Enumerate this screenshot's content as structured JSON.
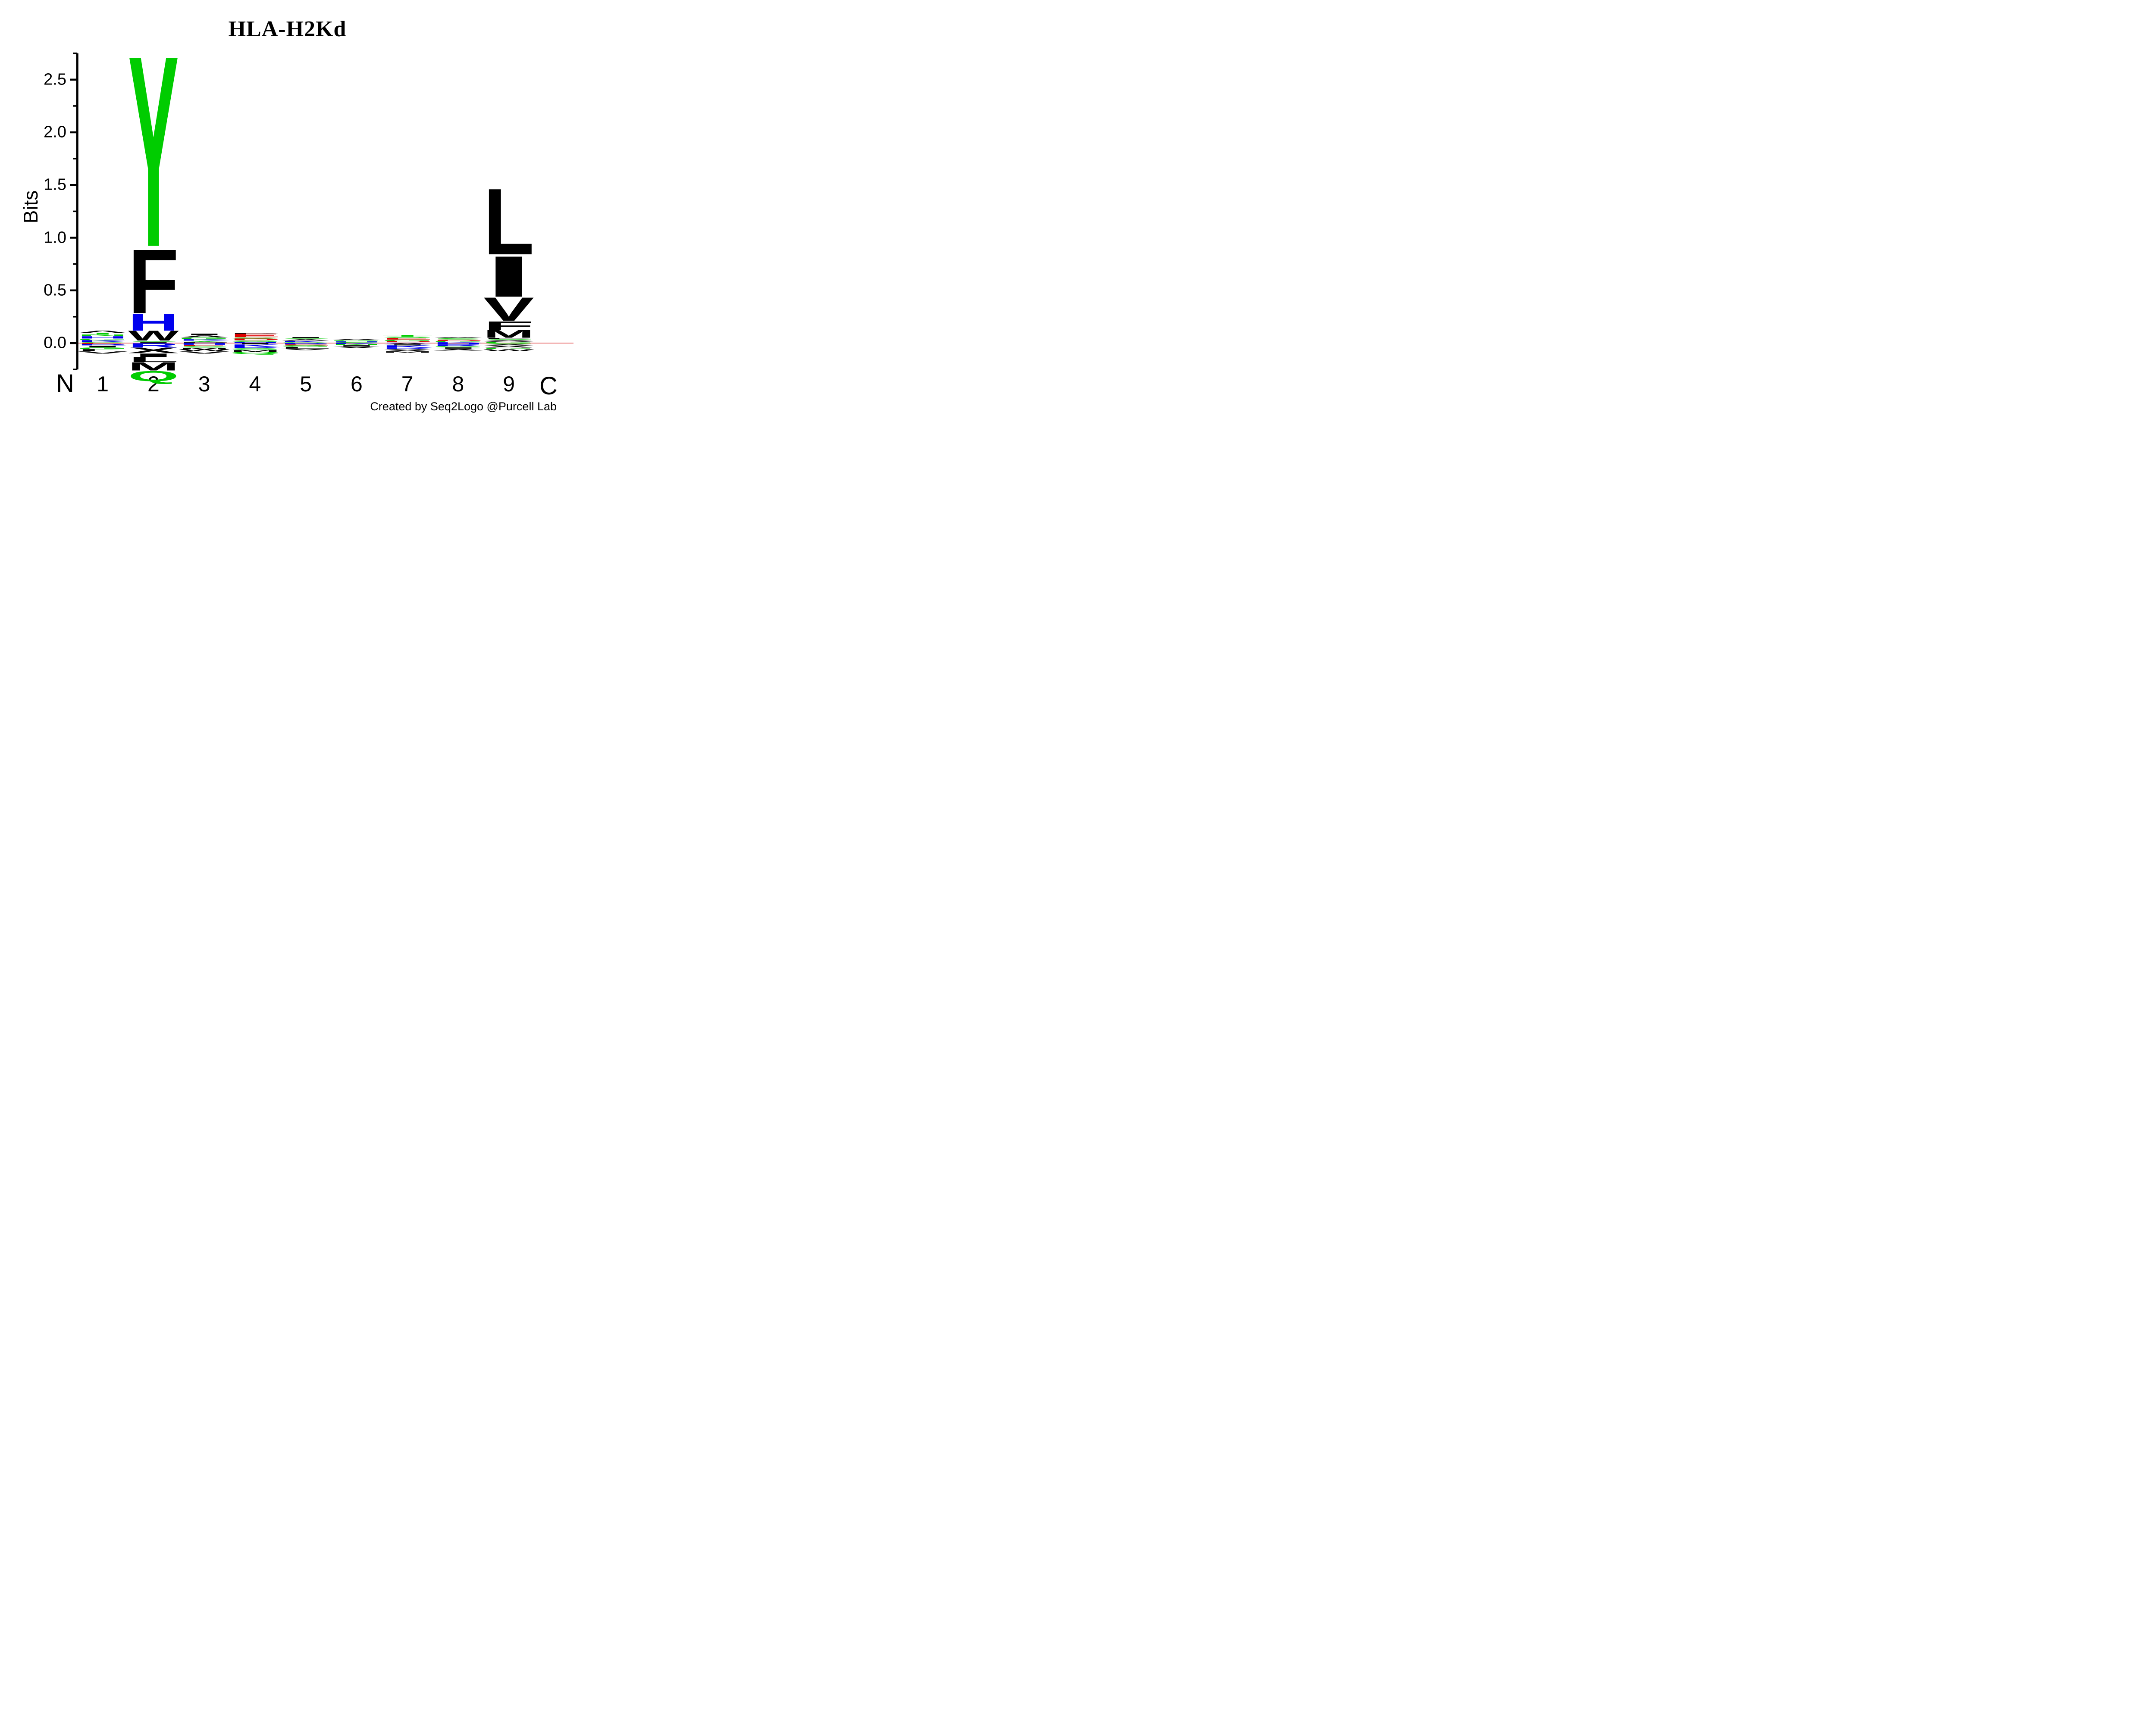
{
  "title": "HLA-H2Kd",
  "footer": "Created by Seq2Logo @Purcell Lab",
  "colors": {
    "black": "#000000",
    "green": "#00CC00",
    "blue": "#0000EE",
    "red": "#DD0000",
    "zero_line": "#E87070",
    "axis": "#000000"
  },
  "y_axis": {
    "label": "Bits",
    "major_ticks": [
      {
        "label": "0.0",
        "value": 0.0
      },
      {
        "label": "0.5",
        "value": 0.5
      },
      {
        "label": "1.0",
        "value": 1.0
      },
      {
        "label": "1.5",
        "value": 1.5
      },
      {
        "label": "2.0",
        "value": 2.0
      },
      {
        "label": "2.5",
        "value": 2.5
      }
    ],
    "minor_ticks": [
      -0.25,
      0.25,
      0.75,
      1.25,
      1.75,
      2.25,
      2.75
    ],
    "axis_max": 2.75,
    "axis_min": -0.25
  },
  "x_axis": {
    "n_terminus_label": "N",
    "c_terminus_label": "C",
    "position_labels": [
      "1",
      "2",
      "3",
      "4",
      "5",
      "6",
      "7",
      "8",
      "9"
    ]
  },
  "chart_data": {
    "type": "sequence_logo",
    "tool": "Seq2Logo",
    "units": "bits",
    "ylim": [
      -0.25,
      2.75
    ],
    "color_scheme": {
      "black_residues": "hydrophobic (A V L I P W F M X)",
      "green_residues": "polar (G S T Y C Q N)",
      "blue_residues": "basic (K R H)",
      "red_residues": "acidic (D E)"
    },
    "positions": [
      {
        "pos": 1,
        "above": [
          {
            "aa": "S",
            "color": "green",
            "bits": 0.01
          },
          {
            "aa": "K",
            "color": "blue",
            "bits": 0.018
          },
          {
            "aa": "G",
            "color": "green",
            "bits": 0.014
          },
          {
            "aa": "H",
            "color": "blue",
            "bits": 0.022
          },
          {
            "aa": "N",
            "color": "green",
            "bits": 0.016
          },
          {
            "aa": "T",
            "color": "green",
            "bits": 0.018
          },
          {
            "aa": "A",
            "color": "black",
            "bits": 0.022
          }
        ],
        "below": [
          {
            "aa": "E",
            "color": "red",
            "bits": 0.01
          },
          {
            "aa": "R",
            "color": "blue",
            "bits": 0.014
          },
          {
            "aa": "I",
            "color": "black",
            "bits": 0.016
          },
          {
            "aa": "G",
            "color": "green",
            "bits": 0.018
          },
          {
            "aa": "L",
            "color": "black",
            "bits": 0.02
          },
          {
            "aa": "V",
            "color": "black",
            "bits": 0.022
          }
        ]
      },
      {
        "pos": 2,
        "above": [
          {
            "aa": "I",
            "color": "black",
            "bits": 0.01
          },
          {
            "aa": "S",
            "color": "green",
            "bits": 0.012
          },
          {
            "aa": "W",
            "color": "black",
            "bits": 0.095
          },
          {
            "aa": "H",
            "color": "blue",
            "bits": 0.165
          },
          {
            "aa": "F",
            "color": "black",
            "bits": 0.63
          },
          {
            "aa": "Y",
            "color": "green",
            "bits": 1.88
          }
        ],
        "below": [
          {
            "aa": "R",
            "color": "blue",
            "bits": 0.042
          },
          {
            "aa": "X",
            "color": "black",
            "bits": 0.055
          },
          {
            "aa": "I",
            "color": "black",
            "bits": 0.035
          },
          {
            "aa": "L",
            "color": "black",
            "bits": 0.05
          },
          {
            "aa": "M",
            "color": "black",
            "bits": 0.08
          },
          {
            "aa": "Q",
            "color": "green",
            "bits": 0.1
          }
        ]
      },
      {
        "pos": 3,
        "above": [
          {
            "aa": "P",
            "color": "black",
            "bits": 0.01
          },
          {
            "aa": "Y",
            "color": "green",
            "bits": 0.012
          },
          {
            "aa": "K",
            "color": "blue",
            "bits": 0.014
          },
          {
            "aa": "G",
            "color": "green",
            "bits": 0.018
          },
          {
            "aa": "A",
            "color": "black",
            "bits": 0.02
          },
          {
            "aa": "I",
            "color": "black",
            "bits": 0.014
          }
        ],
        "below": [
          {
            "aa": "H",
            "color": "blue",
            "bits": 0.016
          },
          {
            "aa": "E",
            "color": "red",
            "bits": 0.01
          },
          {
            "aa": "S",
            "color": "green",
            "bits": 0.018
          },
          {
            "aa": "M",
            "color": "black",
            "bits": 0.014
          },
          {
            "aa": "W",
            "color": "black",
            "bits": 0.018
          },
          {
            "aa": "V",
            "color": "black",
            "bits": 0.022
          }
        ]
      },
      {
        "pos": 4,
        "above": [
          {
            "aa": "H",
            "color": "blue",
            "bits": 0.014
          },
          {
            "aa": "G",
            "color": "green",
            "bits": 0.012
          },
          {
            "aa": "D",
            "color": "red",
            "bits": 0.018
          },
          {
            "aa": "S",
            "color": "green",
            "bits": 0.01
          },
          {
            "aa": "E",
            "color": "red",
            "bits": 0.034
          },
          {
            "aa": "P",
            "color": "black",
            "bits": 0.01
          }
        ],
        "below": [
          {
            "aa": "I",
            "color": "black",
            "bits": 0.012
          },
          {
            "aa": "K",
            "color": "blue",
            "bits": 0.026
          },
          {
            "aa": "R",
            "color": "blue",
            "bits": 0.012
          },
          {
            "aa": "G",
            "color": "green",
            "bits": 0.014
          },
          {
            "aa": "M",
            "color": "black",
            "bits": 0.018
          },
          {
            "aa": "Q",
            "color": "green",
            "bits": 0.022
          }
        ]
      },
      {
        "pos": 5,
        "above": [
          {
            "aa": "G",
            "color": "green",
            "bits": 0.01
          },
          {
            "aa": "K",
            "color": "blue",
            "bits": 0.012
          },
          {
            "aa": "A",
            "color": "black",
            "bits": 0.014
          },
          {
            "aa": "S",
            "color": "green",
            "bits": 0.012
          },
          {
            "aa": "I",
            "color": "black",
            "bits": 0.01
          }
        ],
        "below": [
          {
            "aa": "R",
            "color": "blue",
            "bits": 0.012
          },
          {
            "aa": "E",
            "color": "red",
            "bits": 0.01
          },
          {
            "aa": "G",
            "color": "green",
            "bits": 0.014
          },
          {
            "aa": "L",
            "color": "black",
            "bits": 0.016
          },
          {
            "aa": "V",
            "color": "black",
            "bits": 0.014
          }
        ]
      },
      {
        "pos": 6,
        "above": [
          {
            "aa": "S",
            "color": "green",
            "bits": 0.008
          },
          {
            "aa": "H",
            "color": "blue",
            "bits": 0.01
          },
          {
            "aa": "G",
            "color": "green",
            "bits": 0.012
          },
          {
            "aa": "A",
            "color": "black",
            "bits": 0.012
          }
        ],
        "below": [
          {
            "aa": "K",
            "color": "blue",
            "bits": 0.01
          },
          {
            "aa": "N",
            "color": "green",
            "bits": 0.012
          },
          {
            "aa": "I",
            "color": "black",
            "bits": 0.012
          },
          {
            "aa": "X",
            "color": "black",
            "bits": 0.016
          }
        ]
      },
      {
        "pos": 7,
        "above": [
          {
            "aa": "K",
            "color": "blue",
            "bits": 0.006
          },
          {
            "aa": "D",
            "color": "red",
            "bits": 0.013
          },
          {
            "aa": "G",
            "color": "green",
            "bits": 0.014
          },
          {
            "aa": "E",
            "color": "red",
            "bits": 0.016
          },
          {
            "aa": "S",
            "color": "green",
            "bits": 0.012
          },
          {
            "aa": "T",
            "color": "green",
            "bits": 0.017
          }
        ],
        "below": [
          {
            "aa": "A",
            "color": "black",
            "bits": 0.012
          },
          {
            "aa": "I",
            "color": "black",
            "bits": 0.01
          },
          {
            "aa": "K",
            "color": "blue",
            "bits": 0.024
          },
          {
            "aa": "R",
            "color": "blue",
            "bits": 0.01
          },
          {
            "aa": "X",
            "color": "black",
            "bits": 0.02
          },
          {
            "aa": "M",
            "color": "black",
            "bits": 0.014
          }
        ]
      },
      {
        "pos": 8,
        "above": [
          {
            "aa": "K",
            "color": "blue",
            "bits": 0.01
          },
          {
            "aa": "G",
            "color": "green",
            "bits": 0.012
          },
          {
            "aa": "D",
            "color": "red",
            "bits": 0.012
          },
          {
            "aa": "S",
            "color": "green",
            "bits": 0.014
          },
          {
            "aa": "A",
            "color": "black",
            "bits": 0.008
          }
        ],
        "below": [
          {
            "aa": "H",
            "color": "blue",
            "bits": 0.012
          },
          {
            "aa": "R",
            "color": "blue",
            "bits": 0.016
          },
          {
            "aa": "G",
            "color": "green",
            "bits": 0.012
          },
          {
            "aa": "I",
            "color": "black",
            "bits": 0.012
          },
          {
            "aa": "X",
            "color": "black",
            "bits": 0.018
          }
        ]
      },
      {
        "pos": 9,
        "above": [
          {
            "aa": "G",
            "color": "green",
            "bits": 0.014
          },
          {
            "aa": "X",
            "color": "black",
            "bits": 0.016
          },
          {
            "aa": "S",
            "color": "green",
            "bits": 0.012
          },
          {
            "aa": "P",
            "color": "black",
            "bits": 0.008
          },
          {
            "aa": "M",
            "color": "black",
            "bits": 0.076
          },
          {
            "aa": "F",
            "color": "black",
            "bits": 0.084
          },
          {
            "aa": "V",
            "color": "black",
            "bits": 0.23
          },
          {
            "aa": "I",
            "color": "black",
            "bits": 0.4
          },
          {
            "aa": "L",
            "color": "black",
            "bits": 0.65
          }
        ],
        "below": [
          {
            "aa": "S",
            "color": "green",
            "bits": 0.01
          },
          {
            "aa": "X",
            "color": "black",
            "bits": 0.016
          },
          {
            "aa": "A",
            "color": "black",
            "bits": 0.018
          },
          {
            "aa": "G",
            "color": "green",
            "bits": 0.012
          },
          {
            "aa": "W",
            "color": "black",
            "bits": 0.02
          }
        ]
      }
    ]
  }
}
